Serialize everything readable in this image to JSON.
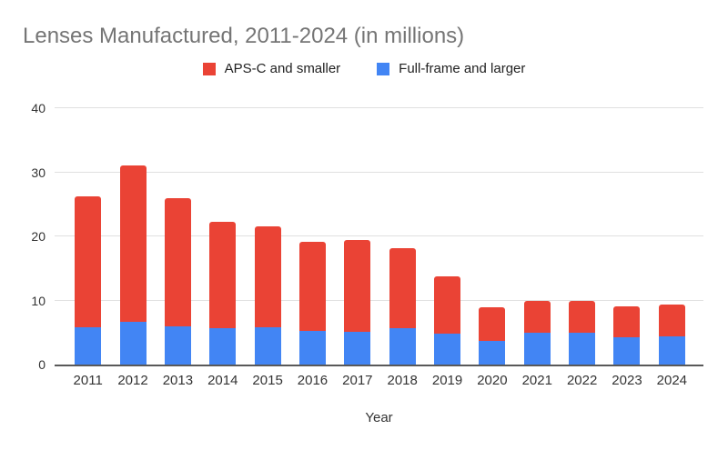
{
  "title": "Lenses Manufactured, 2011-2024 (in millions)",
  "legend": [
    {
      "label": "APS-C and smaller",
      "color": "#EA4335"
    },
    {
      "label": "Full-frame and larger",
      "color": "#4285F4"
    }
  ],
  "xaxis_title": "Year",
  "chart_data": {
    "type": "bar",
    "stacked": true,
    "title": "Lenses Manufactured, 2011-2024 (in millions)",
    "xlabel": "Year",
    "ylabel": "",
    "ylim": [
      0,
      40
    ],
    "yticks": [
      0,
      10,
      20,
      30,
      40
    ],
    "grid": true,
    "legend_position": "top",
    "categories": [
      "2011",
      "2012",
      "2013",
      "2014",
      "2015",
      "2016",
      "2017",
      "2018",
      "2019",
      "2020",
      "2021",
      "2022",
      "2023",
      "2024"
    ],
    "series": [
      {
        "name": "APS-C and smaller",
        "color": "#EA4335",
        "stack_position": "top",
        "values": [
          20.5,
          24.4,
          19.9,
          16.6,
          15.7,
          13.9,
          14.3,
          12.5,
          9.0,
          5.2,
          4.9,
          5.0,
          4.9,
          5.0
        ]
      },
      {
        "name": "Full-frame and larger",
        "color": "#4285F4",
        "stack_position": "bottom",
        "values": [
          5.8,
          6.7,
          6.0,
          5.7,
          5.8,
          5.2,
          5.1,
          5.7,
          4.8,
          3.7,
          5.0,
          5.0,
          4.2,
          4.4
        ]
      }
    ],
    "stack_totals": [
      26.3,
      31.1,
      25.9,
      22.3,
      21.5,
      19.1,
      19.4,
      18.2,
      13.8,
      8.9,
      9.9,
      10.0,
      9.1,
      9.4
    ]
  },
  "colors": {
    "title_text": "#757575",
    "axis_text": "#333333",
    "legend_text": "#212121",
    "gridline": "#E0E0E0",
    "axis_line": "#595959",
    "background": "#FFFFFF"
  }
}
